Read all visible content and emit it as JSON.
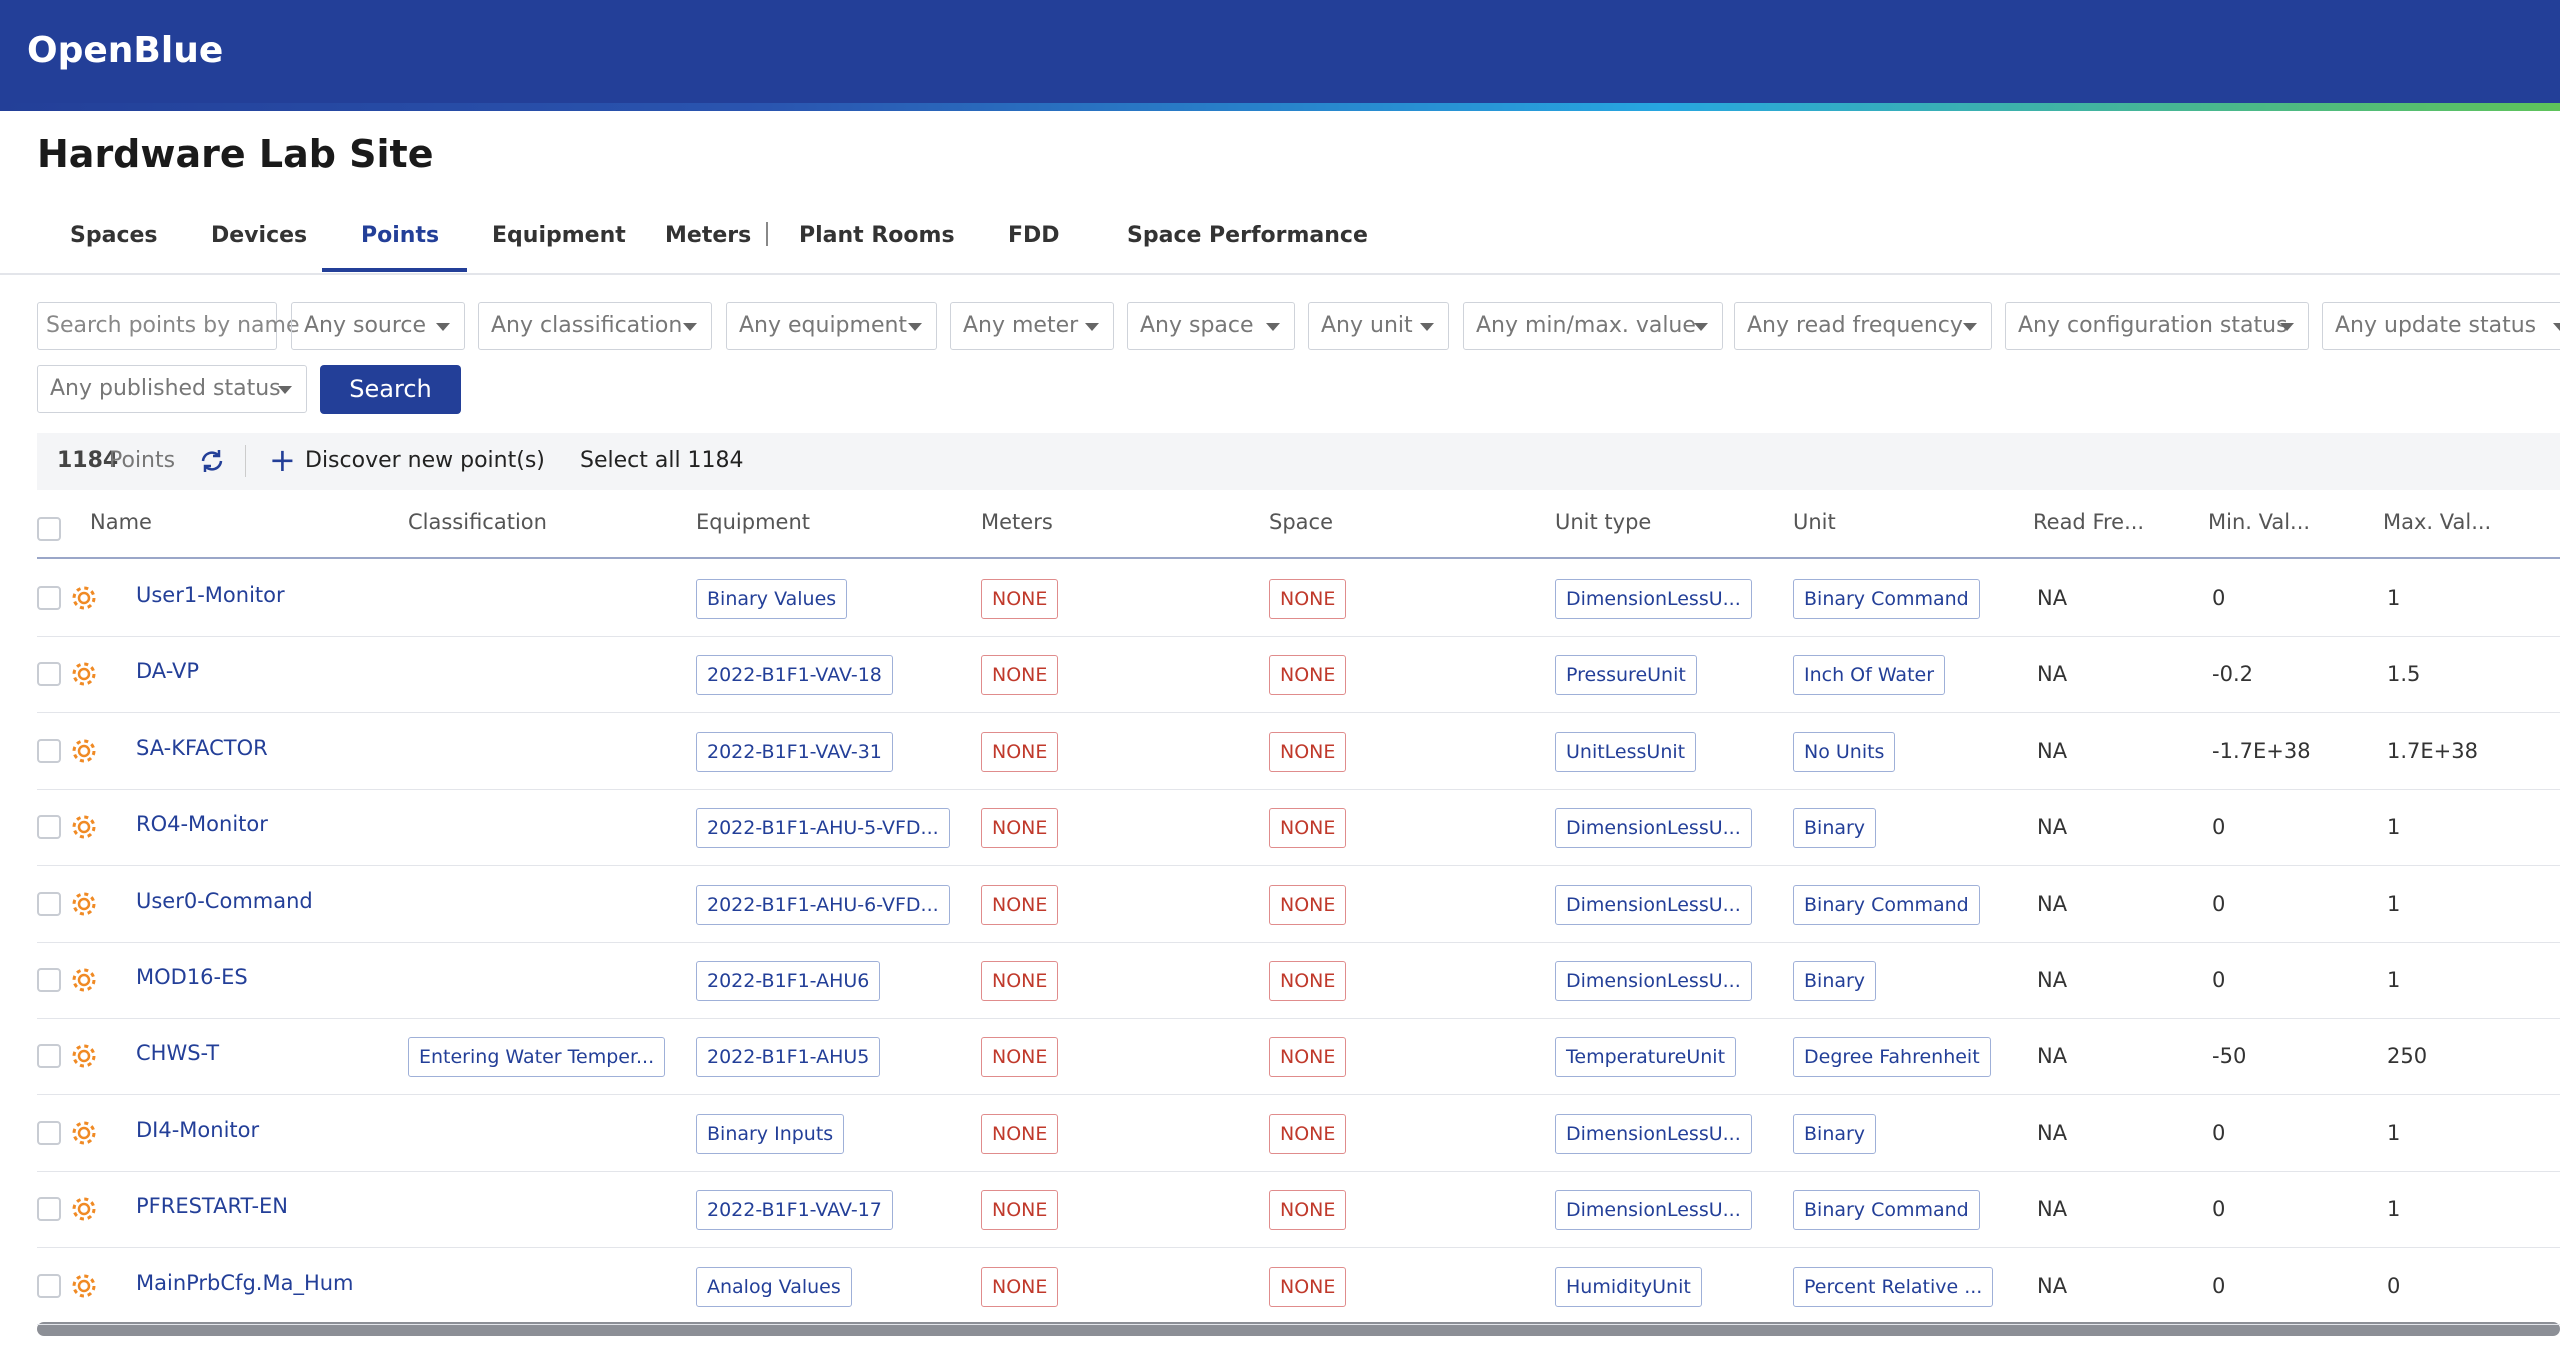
{
  "header": {
    "brand": "OpenBlue"
  },
  "page": {
    "title": "Hardware Lab Site"
  },
  "tabs": [
    "Spaces",
    "Devices",
    "Points",
    "Equipment",
    "Meters",
    "Plant Rooms",
    "FDD",
    "Space Performance"
  ],
  "active_tab": "Points",
  "filters": {
    "search_placeholder": "Search points by name",
    "dropdowns": [
      "Any source",
      "Any classification",
      "Any equipment",
      "Any meter",
      "Any space",
      "Any unit",
      "Any min/max. value",
      "Any read frequency",
      "Any configuration status",
      "Any update status",
      "Any published status"
    ],
    "button": "Search"
  },
  "toolbar": {
    "count": "1184",
    "count_label": "Points",
    "discover": "Discover new point(s)",
    "select_all": "Select all 1184"
  },
  "table": {
    "columns": [
      "Name",
      "Classification",
      "Equipment",
      "Meters",
      "Space",
      "Unit type",
      "Unit",
      "Read Fre...",
      "Min. Val...",
      "Max. Val..."
    ],
    "rows": [
      [
        "User1-Monitor",
        null,
        "Binary Values",
        "NONE",
        "NONE",
        "DimensionLessU...",
        "Binary Command",
        "NA",
        "0",
        "1"
      ],
      [
        "DA-VP",
        null,
        "2022-B1F1-VAV-18",
        "NONE",
        "NONE",
        "PressureUnit",
        "Inch Of Water",
        "NA",
        "-0.2",
        "1.5"
      ],
      [
        "SA-KFACTOR",
        null,
        "2022-B1F1-VAV-31",
        "NONE",
        "NONE",
        "UnitLessUnit",
        "No Units",
        "NA",
        "-1.7E+38",
        "1.7E+38"
      ],
      [
        "RO4-Monitor",
        null,
        "2022-B1F1-AHU-5-VFD...",
        "NONE",
        "NONE",
        "DimensionLessU...",
        "Binary",
        "NA",
        "0",
        "1"
      ],
      [
        "User0-Command",
        null,
        "2022-B1F1-AHU-6-VFD...",
        "NONE",
        "NONE",
        "DimensionLessU...",
        "Binary Command",
        "NA",
        "0",
        "1"
      ],
      [
        "MOD16-ES",
        null,
        "2022-B1F1-AHU6",
        "NONE",
        "NONE",
        "DimensionLessU...",
        "Binary",
        "NA",
        "0",
        "1"
      ],
      [
        "CHWS-T",
        "Entering Water Temper...",
        "2022-B1F1-AHU5",
        "NONE",
        "NONE",
        "TemperatureUnit",
        "Degree Fahrenheit",
        "NA",
        "-50",
        "250"
      ],
      [
        "DI4-Monitor",
        null,
        "Binary Inputs",
        "NONE",
        "NONE",
        "DimensionLessU...",
        "Binary",
        "NA",
        "0",
        "1"
      ],
      [
        "PFRESTART-EN",
        null,
        "2022-B1F1-VAV-17",
        "NONE",
        "NONE",
        "DimensionLessU...",
        "Binary Command",
        "NA",
        "0",
        "1"
      ],
      [
        "MainPrbCfg.Ma_Hum",
        null,
        "Analog Values",
        "NONE",
        "NONE",
        "HumidityUnit",
        "Percent Relative ...",
        "NA",
        "0",
        "0"
      ]
    ]
  }
}
